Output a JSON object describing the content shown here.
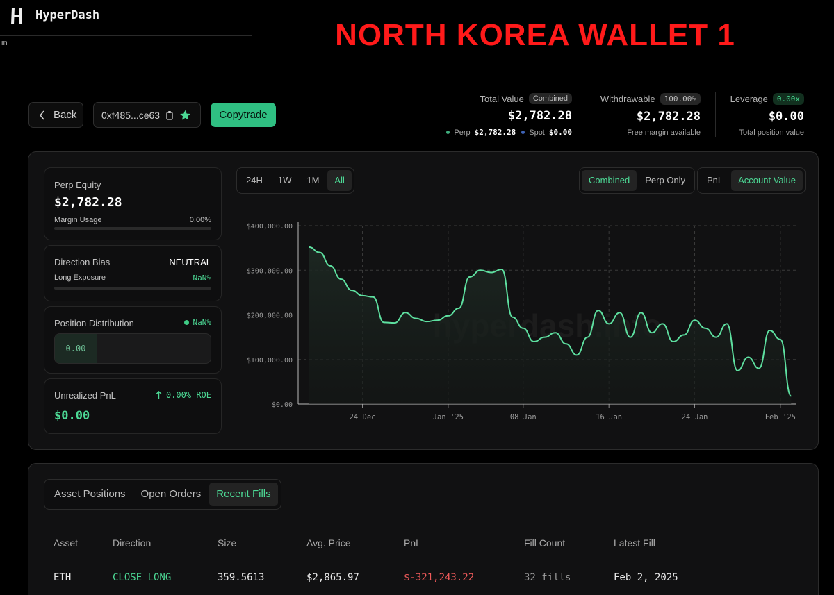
{
  "app": {
    "name": "HyperDash",
    "stray_text": "in"
  },
  "headline": "NORTH KOREA WALLET 1",
  "toolbar": {
    "back_label": "Back",
    "address": "0xf485...ce63",
    "copytrade_label": "Copytrade"
  },
  "stats": {
    "total_value": {
      "label": "Total Value",
      "badge": "Combined",
      "value": "$2,782.28",
      "perp_label": "Perp",
      "perp_value": "$2,782.28",
      "spot_label": "Spot",
      "spot_value": "$0.00"
    },
    "withdrawable": {
      "label": "Withdrawable",
      "badge": "100.00%",
      "value": "$2,782.28",
      "sub": "Free margin available"
    },
    "leverage": {
      "label": "Leverage",
      "badge": "0.00x",
      "value": "$0.00",
      "sub": "Total position value"
    }
  },
  "cards": {
    "perp_equity": {
      "label": "Perp Equity",
      "value": "$2,782.28",
      "margin_label": "Margin Usage",
      "margin_value": "0.00%",
      "margin_fraction": 0
    },
    "direction_bias": {
      "label": "Direction Bias",
      "value": "NEUTRAL",
      "long_label": "Long Exposure",
      "long_value": "NaN%"
    },
    "position_distribution": {
      "label": "Position Distribution",
      "value": "NaN%",
      "box_value": "0.00"
    },
    "unrealized_pnl": {
      "label": "Unrealized PnL",
      "roe": "0.00% ROE",
      "value": "$0.00"
    }
  },
  "chart_controls": {
    "ranges": [
      "24H",
      "1W",
      "1M",
      "All"
    ],
    "range_selected": "All",
    "scopes": [
      "Combined",
      "Perp Only"
    ],
    "scope_selected": "Combined",
    "metrics": [
      "PnL",
      "Account Value"
    ],
    "metric_selected": "Account Value"
  },
  "chart_data": {
    "type": "area",
    "title": "",
    "watermark": "hyperdash.info",
    "xlabel": "",
    "ylabel": "",
    "x_ticks": [
      "24 Dec",
      "Jan '25",
      "08 Jan",
      "16 Jan",
      "24 Jan",
      "Feb '25"
    ],
    "y_ticks": [
      "$0.00",
      "$100,000.00",
      "$200,000.00",
      "$300,000.00",
      "$400,000.00"
    ],
    "ylim": [
      0,
      400000
    ],
    "grid": true,
    "color": "#5ee0a0",
    "x": [
      "2024-12-19",
      "2024-12-20",
      "2024-12-21",
      "2024-12-22",
      "2024-12-23",
      "2024-12-24",
      "2024-12-25",
      "2024-12-26",
      "2024-12-27",
      "2024-12-28",
      "2024-12-29",
      "2024-12-30",
      "2024-12-31",
      "2025-01-01",
      "2025-01-02",
      "2025-01-03",
      "2025-01-04",
      "2025-01-05",
      "2025-01-06",
      "2025-01-07",
      "2025-01-08",
      "2025-01-09",
      "2025-01-10",
      "2025-01-11",
      "2025-01-12",
      "2025-01-13",
      "2025-01-14",
      "2025-01-15",
      "2025-01-16",
      "2025-01-17",
      "2025-01-18",
      "2025-01-19",
      "2025-01-20",
      "2025-01-21",
      "2025-01-22",
      "2025-01-23",
      "2025-01-24",
      "2025-01-25",
      "2025-01-26",
      "2025-01-27",
      "2025-01-28",
      "2025-01-29",
      "2025-01-30",
      "2025-01-31",
      "2025-02-01",
      "2025-02-02"
    ],
    "series": [
      {
        "values": [
          352000,
          340000,
          310000,
          280000,
          255000,
          243000,
          240000,
          183000,
          182000,
          205000,
          192000,
          185000,
          188000,
          198000,
          215000,
          285000,
          300000,
          295000,
          302000,
          195000,
          170000,
          140000,
          150000,
          160000,
          135000,
          110000,
          150000,
          210000,
          180000,
          205000,
          150000,
          205000,
          160000,
          180000,
          140000,
          155000,
          188000,
          170000,
          150000,
          180000,
          75000,
          105000,
          80000,
          165000,
          145000,
          18000
        ]
      }
    ]
  },
  "tabs": {
    "items": [
      "Asset Positions",
      "Open Orders",
      "Recent Fills"
    ],
    "selected": "Recent Fills"
  },
  "fills_table": {
    "columns": [
      "Asset",
      "Direction",
      "Size",
      "Avg. Price",
      "PnL",
      "Fill Count",
      "Latest Fill"
    ],
    "rows": [
      {
        "asset": "ETH",
        "direction": "CLOSE LONG",
        "size": "359.5613",
        "avg_price": "$2,865.97",
        "pnl": "$-321,243.22",
        "fill_count": "32 fills",
        "latest_fill": "Feb 2, 2025"
      }
    ]
  }
}
